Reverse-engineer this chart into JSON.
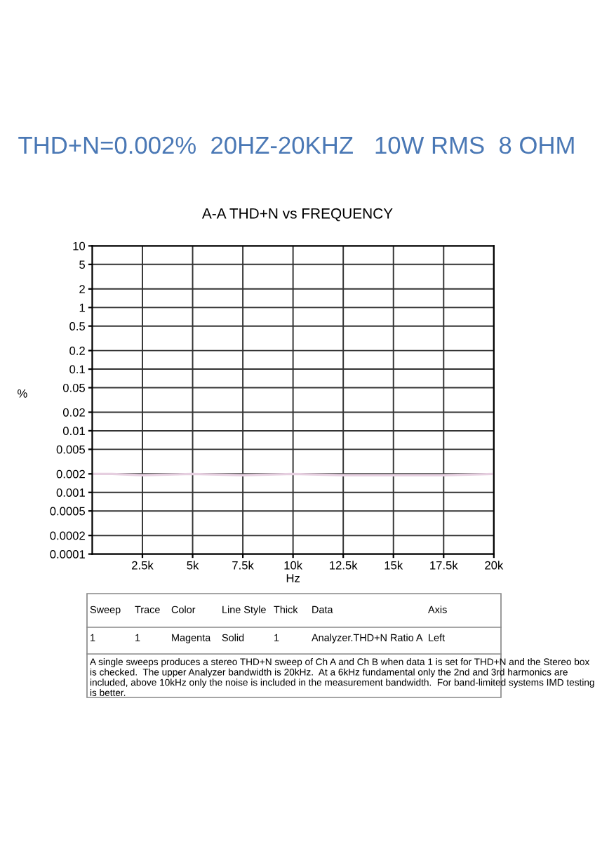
{
  "chart_data": {
    "type": "line",
    "title": "THD+N=0.002%  20HZ-20KHZ   10W RMS  8 OHM",
    "subtitle": "A-A THD+N vs FREQUENCY",
    "xlabel": "Hz",
    "ylabel": "%",
    "x": [
      20,
      1000,
      2500,
      5000,
      7500,
      10000,
      12500,
      15000,
      17500,
      20000
    ],
    "series": [
      {
        "color": "#e6cfe0",
        "values": [
          0.002,
          0.002,
          0.0019,
          0.002,
          0.0019,
          0.002,
          0.0019,
          0.0019,
          0.0019,
          0.002
        ]
      }
    ],
    "log": "y",
    "xlim": [
      0,
      20000
    ],
    "ylim": [
      0.0001,
      10
    ],
    "xticks": [
      {
        "value": 2500,
        "label": "2.5k"
      },
      {
        "value": 5000,
        "label": "5k"
      },
      {
        "value": 7500,
        "label": "7.5k"
      },
      {
        "value": 10000,
        "label": "10k"
      },
      {
        "value": 12500,
        "label": "12.5k"
      },
      {
        "value": 15000,
        "label": "15k"
      },
      {
        "value": 17500,
        "label": "17.5k"
      },
      {
        "value": 20000,
        "label": "20k"
      }
    ],
    "yticks": [
      0.0001,
      0.0002,
      0.0005,
      0.001,
      0.002,
      0.005,
      0.01,
      0.02,
      0.05,
      0.1,
      0.2,
      0.5,
      1,
      2,
      5,
      10
    ],
    "grid": true,
    "line_style": "solid",
    "marker": "none",
    "annotations": [
      "Sweep",
      "Trace",
      "Color",
      "Line Style",
      "Thick",
      "Data",
      "Axis",
      "1",
      "1",
      "Magenta",
      "Solid",
      "1",
      "Analyzer.THD+N Ratio A",
      "Left",
      "A single sweeps produces a stereo THD+N sweep of Ch A and Ch B when data 1 is set for THD+N and the Stereo box is checked.  The upper Analyzer bandwidth is 20kHz.  At a 6kHz fundamental only the 2nd and 3rd harmonics are included, above 10kHz only the noise is included in the measurement bandwidth.  For band-limited systems IMD testing is better."
    ]
  }
}
